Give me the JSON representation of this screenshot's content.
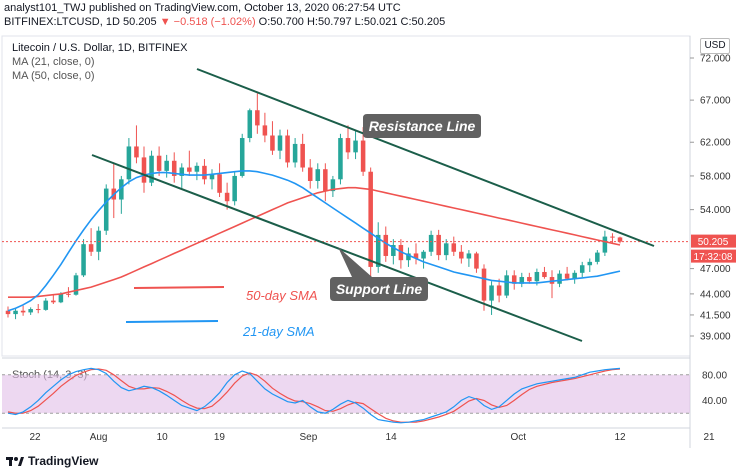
{
  "header": {
    "publish_line": "analyst101_TWJ published on TradingView.com, October 13, 2020 06:27:54 UTC",
    "symbol": "BITFINEX:LTCUSD, 1D",
    "price": "50.205",
    "change": "▼ −0.518 (−1.02%)",
    "ohlc": "O:50.700 H:50.797 L:50.021 C:50.205"
  },
  "chart_title": "Litecoin / U.S. Dollar, 1D, BITFINEX",
  "ma_labels": [
    "MA (21, close, 0)",
    "MA (50, close, 0)"
  ],
  "currency_button": "USD",
  "price_badge": "50.205",
  "countdown_badge": "17:32:08",
  "annotations": {
    "resistance": "Resistance Line",
    "support": "Support Line",
    "sma50": "50-day SMA",
    "sma21": "21-day SMA"
  },
  "stoch_label": "Stoch (14, 3, 3)",
  "brand": "TradingView",
  "colors": {
    "up": "#26a69a",
    "down": "#ef5350",
    "sma21": "#2196f3",
    "sma50": "#ef5350",
    "trendline": "#1b5e4a",
    "stoch_k": "#2196f3",
    "stoch_d": "#ef5350",
    "stoch_band": "#e1bee7",
    "badge_bg": "#ef5350",
    "callout_bg": "#616161"
  },
  "chart_data": [
    {
      "type": "candlestick",
      "title": "Litecoin / U.S. Dollar, 1D, BITFINEX",
      "y_axis_ticks": [
        72.0,
        67.0,
        62.0,
        58.0,
        54.0,
        50.205,
        47.0,
        44.0,
        41.5,
        39.0
      ],
      "y_axis_tick_labels": [
        "72.000",
        "67.000",
        "62.000",
        "58.000",
        "54.000",
        "50.205",
        "47.000",
        "44.000",
        "41.500",
        "39.000"
      ],
      "x_axis_tick_labels": [
        "22",
        "Aug",
        "10",
        "19",
        "Sep",
        "14",
        "Oct",
        "12",
        "21"
      ],
      "last_price": 50.205,
      "candles": [
        [
          42.0,
          42.5,
          41.2,
          41.6
        ],
        [
          41.6,
          42.3,
          41.0,
          42.0
        ],
        [
          42.0,
          42.6,
          41.4,
          41.8
        ],
        [
          41.8,
          42.4,
          41.5,
          42.2
        ],
        [
          42.2,
          42.8,
          41.7,
          42.1
        ],
        [
          42.1,
          43.5,
          42.0,
          43.2
        ],
        [
          43.2,
          43.9,
          42.8,
          43.0
        ],
        [
          43.0,
          44.2,
          42.9,
          44.0
        ],
        [
          44.0,
          44.8,
          43.6,
          43.9
        ],
        [
          43.9,
          46.5,
          43.8,
          46.2
        ],
        [
          46.2,
          50.5,
          46.0,
          49.9
        ],
        [
          49.9,
          51.8,
          48.5,
          49.0
        ],
        [
          49.0,
          52.0,
          48.0,
          51.5
        ],
        [
          51.5,
          57.0,
          51.0,
          56.5
        ],
        [
          56.5,
          59.5,
          53.0,
          55.2
        ],
        [
          55.2,
          58.0,
          53.5,
          57.6
        ],
        [
          57.6,
          62.5,
          57.0,
          61.5
        ],
        [
          61.5,
          64.0,
          59.5,
          60.2
        ],
        [
          60.2,
          61.5,
          56.0,
          57.2
        ],
        [
          57.2,
          61.0,
          56.8,
          60.4
        ],
        [
          60.4,
          61.5,
          58.0,
          58.6
        ],
        [
          58.6,
          60.5,
          57.8,
          59.8
        ],
        [
          59.8,
          60.8,
          57.2,
          58.0
        ],
        [
          58.0,
          59.5,
          56.5,
          59.0
        ],
        [
          59.0,
          61.0,
          58.0,
          58.5
        ],
        [
          58.5,
          59.6,
          57.5,
          59.2
        ],
        [
          59.2,
          60.0,
          57.0,
          57.6
        ],
        [
          57.6,
          58.8,
          56.4,
          58.2
        ],
        [
          58.2,
          59.5,
          55.5,
          56.0
        ],
        [
          56.0,
          57.2,
          54.0,
          55.0
        ],
        [
          55.0,
          58.5,
          54.5,
          58.0
        ],
        [
          58.0,
          63.0,
          57.8,
          62.5
        ],
        [
          62.5,
          66.0,
          62.0,
          65.8
        ],
        [
          65.8,
          67.8,
          63.0,
          64.0
        ],
        [
          64.0,
          65.5,
          62.0,
          62.8
        ],
        [
          62.8,
          64.5,
          60.5,
          61.0
        ],
        [
          61.0,
          63.5,
          60.0,
          62.8
        ],
        [
          62.8,
          63.5,
          59.0,
          59.6
        ],
        [
          59.6,
          62.5,
          59.0,
          61.8
        ],
        [
          61.8,
          63.0,
          58.5,
          59.0
        ],
        [
          59.0,
          60.0,
          56.5,
          57.4
        ],
        [
          57.4,
          59.5,
          56.5,
          58.8
        ],
        [
          58.8,
          59.5,
          55.0,
          56.2
        ],
        [
          56.2,
          58.0,
          55.5,
          57.6
        ],
        [
          57.6,
          63.0,
          57.0,
          62.5
        ],
        [
          62.5,
          64.0,
          60.0,
          60.8
        ],
        [
          60.8,
          63.5,
          60.0,
          62.2
        ],
        [
          62.2,
          63.8,
          58.0,
          58.5
        ],
        [
          58.5,
          59.0,
          46.0,
          47.2
        ],
        [
          47.2,
          52.5,
          46.5,
          51.0
        ],
        [
          51.0,
          52.0,
          47.8,
          48.5
        ],
        [
          48.5,
          50.5,
          47.5,
          49.8
        ],
        [
          49.8,
          50.5,
          47.0,
          48.0
        ],
        [
          48.0,
          49.5,
          47.2,
          48.8
        ],
        [
          48.8,
          50.0,
          47.5,
          48.2
        ],
        [
          48.2,
          49.2,
          47.0,
          49.0
        ],
        [
          49.0,
          51.5,
          48.5,
          51.0
        ],
        [
          51.0,
          51.6,
          48.0,
          48.6
        ],
        [
          48.6,
          50.5,
          48.0,
          50.0
        ],
        [
          50.0,
          50.8,
          48.5,
          49.0
        ],
        [
          49.0,
          49.8,
          47.6,
          48.2
        ],
        [
          48.2,
          49.2,
          47.2,
          48.8
        ],
        [
          48.8,
          49.0,
          46.5,
          47.0
        ],
        [
          47.0,
          47.5,
          42.0,
          43.2
        ],
        [
          43.2,
          45.5,
          41.5,
          45.0
        ],
        [
          45.0,
          45.8,
          43.0,
          43.8
        ],
        [
          43.8,
          46.8,
          43.5,
          46.2
        ],
        [
          46.2,
          46.8,
          44.5,
          45.2
        ],
        [
          45.2,
          46.5,
          44.8,
          46.0
        ],
        [
          46.0,
          46.5,
          45.2,
          45.5
        ],
        [
          45.5,
          47.0,
          45.0,
          46.6
        ],
        [
          46.6,
          47.2,
          45.8,
          46.0
        ],
        [
          46.0,
          46.8,
          43.5,
          45.2
        ],
        [
          45.2,
          46.8,
          44.8,
          46.4
        ],
        [
          46.4,
          47.2,
          45.6,
          45.8
        ],
        [
          45.8,
          46.8,
          45.2,
          46.5
        ],
        [
          46.5,
          47.8,
          46.0,
          47.4
        ],
        [
          47.4,
          48.2,
          46.6,
          47.8
        ],
        [
          47.8,
          49.2,
          47.5,
          48.9
        ],
        [
          48.9,
          51.5,
          48.5,
          50.8
        ],
        [
          50.8,
          51.2,
          50.0,
          50.7
        ],
        [
          50.7,
          50.8,
          50.0,
          50.205
        ]
      ],
      "series": [
        {
          "name": "MA (21, close, 0)",
          "values": [
            42.0,
            42.3,
            42.7,
            43.2,
            43.9,
            45.0,
            46.2,
            47.5,
            48.9,
            50.3,
            51.6,
            52.8,
            53.9,
            54.9,
            55.8,
            56.6,
            57.3,
            57.8,
            58.1,
            58.3,
            58.4,
            58.4,
            58.3,
            58.2,
            58.1,
            58.1,
            58.1,
            58.2,
            58.3,
            58.4,
            58.5,
            58.6,
            58.6,
            58.5,
            58.3,
            58.1,
            57.8,
            57.5,
            57.1,
            56.6,
            56.0,
            55.4,
            54.8,
            54.2,
            53.6,
            53.0,
            52.4,
            51.8,
            51.2,
            50.6,
            50.0,
            49.5,
            49.0,
            48.6,
            48.2,
            47.8,
            47.5,
            47.2,
            46.9,
            46.6,
            46.4,
            46.2,
            46.0,
            45.8,
            45.6,
            45.5,
            45.4,
            45.3,
            45.3,
            45.3,
            45.3,
            45.4,
            45.5,
            45.6,
            45.7,
            45.8,
            45.9,
            46.0,
            46.1,
            46.3,
            46.5,
            46.7
          ]
        },
        {
          "name": "MA (50, close, 0)",
          "values": [
            43.6,
            43.6,
            43.6,
            43.6,
            43.7,
            43.8,
            43.9,
            44.0,
            44.2,
            44.4,
            44.6,
            44.8,
            45.1,
            45.4,
            45.7,
            46.0,
            46.4,
            46.8,
            47.2,
            47.6,
            48.0,
            48.4,
            48.8,
            49.2,
            49.6,
            50.0,
            50.4,
            50.8,
            51.2,
            51.6,
            52.0,
            52.4,
            52.8,
            53.2,
            53.6,
            54.0,
            54.4,
            54.8,
            55.1,
            55.4,
            55.7,
            56.0,
            56.2,
            56.4,
            56.5,
            56.6,
            56.6,
            56.5,
            56.4,
            56.2,
            56.0,
            55.8,
            55.6,
            55.4,
            55.2,
            55.0,
            54.8,
            54.6,
            54.4,
            54.2,
            54.0,
            53.8,
            53.6,
            53.4,
            53.2,
            53.0,
            52.8,
            52.6,
            52.4,
            52.2,
            52.0,
            51.8,
            51.6,
            51.4,
            51.2,
            51.0,
            50.8,
            50.6,
            50.4,
            50.2,
            50.0,
            49.8
          ]
        }
      ]
    },
    {
      "type": "line",
      "title": "Stoch (14, 3, 3)",
      "y_axis_tick_labels": [
        "80.00",
        "40.00"
      ],
      "ylim": [
        0,
        100
      ],
      "bands": [
        20,
        80
      ],
      "series": [
        {
          "name": "%K",
          "values": [
            20,
            18,
            22,
            30,
            40,
            52,
            62,
            72,
            80,
            85,
            88,
            90,
            88,
            82,
            70,
            60,
            55,
            58,
            62,
            60,
            55,
            48,
            40,
            32,
            28,
            24,
            30,
            40,
            52,
            68,
            80,
            86,
            82,
            70,
            58,
            50,
            44,
            38,
            36,
            40,
            30,
            22,
            20,
            26,
            34,
            40,
            36,
            28,
            18,
            10,
            8,
            6,
            5,
            6,
            8,
            10,
            14,
            18,
            22,
            30,
            40,
            46,
            42,
            32,
            26,
            30,
            40,
            50,
            58,
            62,
            66,
            68,
            70,
            72,
            74,
            76,
            80,
            84,
            86,
            88,
            89,
            90
          ]
        },
        {
          "name": "%D",
          "values": [
            22,
            20,
            20,
            24,
            31,
            41,
            51,
            62,
            71,
            79,
            84,
            88,
            89,
            87,
            80,
            71,
            62,
            58,
            58,
            60,
            59,
            54,
            48,
            40,
            33,
            28,
            27,
            31,
            41,
            53,
            67,
            78,
            83,
            79,
            70,
            59,
            51,
            44,
            39,
            38,
            35,
            30,
            24,
            23,
            27,
            33,
            37,
            35,
            27,
            19,
            12,
            8,
            6,
            6,
            6,
            8,
            11,
            14,
            18,
            23,
            31,
            39,
            43,
            40,
            33,
            29,
            32,
            40,
            49,
            57,
            62,
            65,
            68,
            70,
            72,
            74,
            77,
            80,
            83,
            86,
            88,
            89
          ]
        }
      ]
    }
  ]
}
